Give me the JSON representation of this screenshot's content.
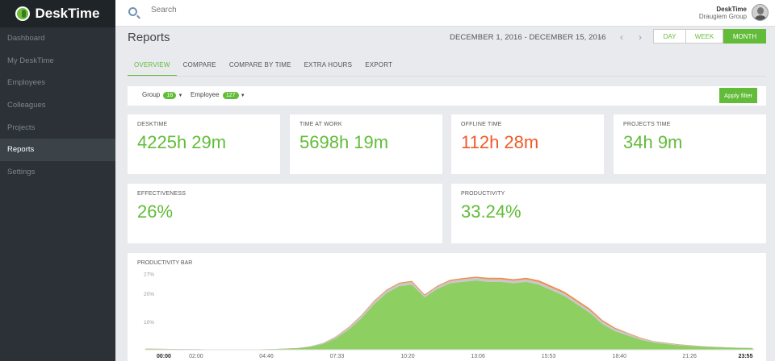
{
  "app": {
    "name": "DeskTime"
  },
  "sidebar": {
    "items": [
      {
        "label": "Dashboard",
        "active": false
      },
      {
        "label": "My DeskTime",
        "active": false
      },
      {
        "label": "Employees",
        "active": false
      },
      {
        "label": "Colleagues",
        "active": false
      },
      {
        "label": "Projects",
        "active": false
      },
      {
        "label": "Reports",
        "active": true
      },
      {
        "label": "Settings",
        "active": false
      }
    ]
  },
  "search": {
    "placeholder": "Search"
  },
  "user": {
    "name": "DeskTime",
    "org": "Draugiem Group"
  },
  "page": {
    "title": "Reports",
    "date_range": "DECEMBER 1, 2016 - DECEMBER 15, 2016"
  },
  "range_buttons": {
    "day": "DAY",
    "week": "WEEK",
    "month": "MONTH",
    "active": "month"
  },
  "tabs": [
    "OVERVIEW",
    "COMPARE",
    "COMPARE BY TIME",
    "EXTRA HOURS",
    "EXPORT"
  ],
  "filters": {
    "group_label": "Group",
    "group_count": "16",
    "employee_label": "Employee",
    "employee_count": "127",
    "apply_label": "Apply filter"
  },
  "stats": {
    "desktime": {
      "label": "DESKTIME",
      "value": "4225h 29m"
    },
    "time_at_work": {
      "label": "TIME AT WORK",
      "value": "5698h 19m"
    },
    "offline_time": {
      "label": "OFFLINE TIME",
      "value": "112h 28m"
    },
    "projects_time": {
      "label": "PROJECTS TIME",
      "value": "34h 9m"
    },
    "effectiveness": {
      "label": "EFFECTIVENESS",
      "value": "26%"
    },
    "productivity": {
      "label": "PRODUCTIVITY",
      "value": "33.24%"
    }
  },
  "colors": {
    "green": "#62bc39",
    "red": "#f05a28",
    "area_green": "#8dcf61",
    "area_gray": "#c8c8c8",
    "area_orange": "#f28c4b"
  },
  "chart_data": {
    "type": "area",
    "title": "PRODUCTIVITY BAR",
    "ylim": [
      0,
      28
    ],
    "y_ticks": [
      "27%",
      "20%",
      "10%"
    ],
    "y_tick_values": [
      27,
      20,
      10
    ],
    "x_ticks": [
      "00:00",
      "02:00",
      "04:46",
      "07:33",
      "10:20",
      "13:06",
      "15:53",
      "18:40",
      "21:26",
      "23:55"
    ],
    "x_tick_hours": [
      0,
      2,
      4.77,
      7.55,
      10.33,
      13.1,
      15.88,
      18.67,
      21.43,
      23.92
    ],
    "x_ticks_bold": [
      "00:00",
      "23:55"
    ],
    "series": [
      {
        "name": "productive",
        "color": "#8dcf61",
        "x": [
          0,
          1,
          2,
          3,
          4,
          5,
          6,
          6.5,
          7,
          7.5,
          8,
          8.5,
          9,
          9.5,
          10,
          10.5,
          11,
          11.5,
          12,
          12.5,
          13,
          13.5,
          14,
          14.5,
          15,
          15.5,
          16,
          16.5,
          17,
          17.5,
          18,
          18.5,
          19,
          19.5,
          20,
          21,
          22,
          23,
          23.92
        ],
        "y": [
          0.3,
          0.2,
          0.1,
          0.1,
          0.1,
          0.2,
          0.5,
          1,
          2,
          4,
          7,
          11,
          16,
          20,
          22.5,
          23,
          18.5,
          21.5,
          23.5,
          24,
          24.5,
          24,
          24,
          23.5,
          24,
          23,
          21,
          19,
          16,
          13,
          9,
          6.5,
          5,
          3.5,
          2.5,
          1.5,
          1,
          0.7,
          0.5
        ]
      },
      {
        "name": "neutral",
        "color": "#c8c8c8",
        "x": [
          0,
          1,
          2,
          3,
          4,
          5,
          6,
          6.5,
          7,
          7.5,
          8,
          8.5,
          9,
          9.5,
          10,
          10.5,
          11,
          11.5,
          12,
          12.5,
          13,
          13.5,
          14,
          14.5,
          15,
          15.5,
          16,
          16.5,
          17,
          17.5,
          18,
          18.5,
          19,
          19.5,
          20,
          21,
          22,
          23,
          23.92
        ],
        "y": [
          0.4,
          0.3,
          0.2,
          0.1,
          0.1,
          0.2,
          0.6,
          1.2,
          2.4,
          4.6,
          7.8,
          12,
          17,
          21,
          23.5,
          24,
          19.3,
          22.4,
          24.4,
          25,
          25.5,
          25,
          25,
          24.5,
          25,
          24,
          22,
          20,
          17,
          14,
          10,
          7.4,
          5.8,
          4.1,
          3,
          1.8,
          1.2,
          0.8,
          0.6
        ]
      },
      {
        "name": "unproductive",
        "color": "#f28c4b",
        "x": [
          0,
          1,
          2,
          3,
          4,
          5,
          6,
          6.5,
          7,
          7.5,
          8,
          8.5,
          9,
          9.5,
          10,
          10.5,
          11,
          11.5,
          12,
          12.5,
          13,
          13.5,
          14,
          14.5,
          15,
          15.5,
          16,
          16.5,
          17,
          17.5,
          18,
          18.5,
          19,
          19.5,
          20,
          21,
          22,
          23,
          23.92
        ],
        "y": [
          0.4,
          0.3,
          0.2,
          0.1,
          0.1,
          0.2,
          0.6,
          1.2,
          2.4,
          4.7,
          8,
          12.2,
          17.3,
          21.3,
          23.8,
          24.4,
          19.6,
          22.7,
          24.8,
          25.4,
          25.9,
          25.5,
          25.5,
          25,
          25.5,
          24.6,
          22.6,
          20.6,
          17.6,
          14.6,
          10.5,
          7.8,
          6,
          4.3,
          3.1,
          1.9,
          1.2,
          0.8,
          0.6
        ]
      }
    ]
  }
}
